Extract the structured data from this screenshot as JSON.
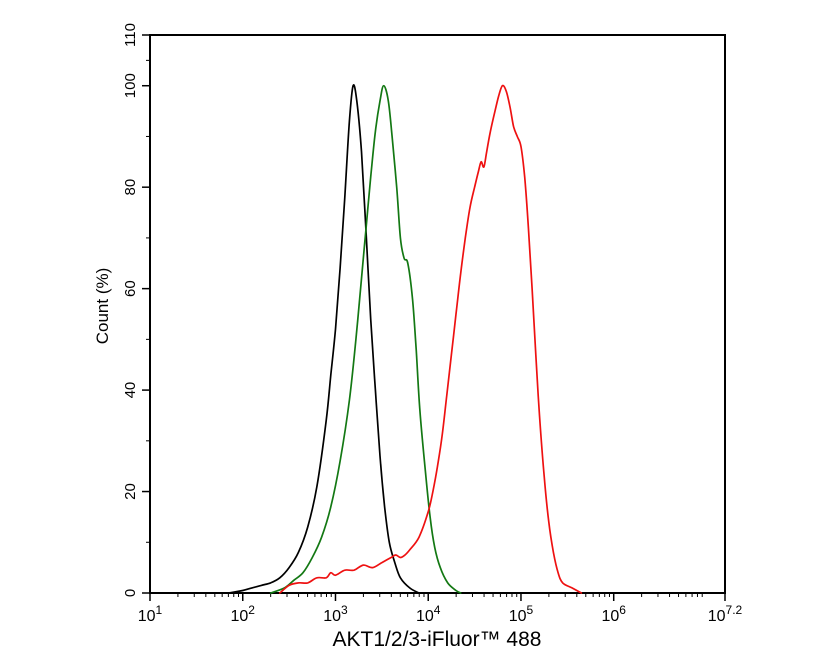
{
  "page": {
    "background": "#ffffff"
  },
  "chart_data": {
    "type": "line",
    "subtype": "flow-cytometry-histogram-overlay",
    "title": "",
    "xlabel": "AKT1/2/3-iFluor™ 488",
    "ylabel": "Count  (%)",
    "x_scale": "log10",
    "x_log_range": [
      1,
      7.2
    ],
    "x_major_tick_exponents": [
      "1",
      "2",
      "3",
      "4",
      "5",
      "6",
      "7.2"
    ],
    "x_tick_base": "10",
    "y_range": [
      0,
      110
    ],
    "y_major_ticks": [
      0,
      20,
      40,
      60,
      80,
      100,
      110
    ],
    "y_minor_ticks": [
      10,
      30,
      50,
      70,
      90,
      105
    ],
    "grid": false,
    "legend": "none",
    "frame_color": "#000000",
    "series": [
      {
        "name": "black-curve",
        "color": "#000000",
        "peak_log10_x": 3.19,
        "peak_percent": 100,
        "points": [
          [
            1.85,
            0
          ],
          [
            2.0,
            0.5
          ],
          [
            2.1,
            1
          ],
          [
            2.2,
            1.5
          ],
          [
            2.3,
            2
          ],
          [
            2.4,
            3
          ],
          [
            2.5,
            5
          ],
          [
            2.6,
            8
          ],
          [
            2.7,
            13
          ],
          [
            2.8,
            21
          ],
          [
            2.9,
            34
          ],
          [
            2.95,
            43
          ],
          [
            3.0,
            52
          ],
          [
            3.05,
            64
          ],
          [
            3.1,
            78
          ],
          [
            3.15,
            93
          ],
          [
            3.19,
            100
          ],
          [
            3.23,
            97
          ],
          [
            3.28,
            87
          ],
          [
            3.33,
            71
          ],
          [
            3.38,
            54
          ],
          [
            3.43,
            40
          ],
          [
            3.48,
            27
          ],
          [
            3.53,
            17
          ],
          [
            3.58,
            10
          ],
          [
            3.64,
            6
          ],
          [
            3.7,
            3
          ],
          [
            3.8,
            1
          ],
          [
            3.9,
            0
          ]
        ]
      },
      {
        "name": "green-curve",
        "color": "#137813",
        "peak_log10_x": 3.52,
        "peak_percent": 100,
        "points": [
          [
            2.3,
            0
          ],
          [
            2.45,
            1
          ],
          [
            2.55,
            2.5
          ],
          [
            2.65,
            4
          ],
          [
            2.75,
            7
          ],
          [
            2.85,
            11
          ],
          [
            2.95,
            17
          ],
          [
            3.05,
            26
          ],
          [
            3.15,
            38
          ],
          [
            3.22,
            50
          ],
          [
            3.28,
            62
          ],
          [
            3.33,
            72
          ],
          [
            3.38,
            82
          ],
          [
            3.43,
            91
          ],
          [
            3.48,
            97
          ],
          [
            3.52,
            100
          ],
          [
            3.57,
            97
          ],
          [
            3.61,
            90
          ],
          [
            3.66,
            80
          ],
          [
            3.7,
            70
          ],
          [
            3.74,
            66
          ],
          [
            3.78,
            65
          ],
          [
            3.83,
            58
          ],
          [
            3.87,
            48
          ],
          [
            3.91,
            36
          ],
          [
            3.97,
            24
          ],
          [
            4.02,
            15
          ],
          [
            4.07,
            9
          ],
          [
            4.13,
            5
          ],
          [
            4.21,
            2
          ],
          [
            4.3,
            0.5
          ],
          [
            4.35,
            0
          ]
        ]
      },
      {
        "name": "red-curve",
        "color": "#ee1111",
        "peak_log10_x": 4.8,
        "peak_percent": 100,
        "points": [
          [
            2.4,
            0
          ],
          [
            2.5,
            1.5
          ],
          [
            2.6,
            2
          ],
          [
            2.7,
            2
          ],
          [
            2.8,
            3
          ],
          [
            2.9,
            3
          ],
          [
            2.95,
            4
          ],
          [
            3.0,
            3.5
          ],
          [
            3.1,
            4.5
          ],
          [
            3.2,
            4.5
          ],
          [
            3.3,
            5.5
          ],
          [
            3.4,
            5
          ],
          [
            3.5,
            6
          ],
          [
            3.55,
            6.5
          ],
          [
            3.6,
            7
          ],
          [
            3.65,
            7.5
          ],
          [
            3.7,
            7
          ],
          [
            3.75,
            7.5
          ],
          [
            3.8,
            8.5
          ],
          [
            3.9,
            11
          ],
          [
            4.0,
            16
          ],
          [
            4.05,
            20
          ],
          [
            4.1,
            25
          ],
          [
            4.15,
            31
          ],
          [
            4.2,
            39
          ],
          [
            4.25,
            47
          ],
          [
            4.3,
            55
          ],
          [
            4.35,
            63
          ],
          [
            4.4,
            70
          ],
          [
            4.45,
            76
          ],
          [
            4.5,
            80
          ],
          [
            4.54,
            83
          ],
          [
            4.57,
            85
          ],
          [
            4.6,
            84
          ],
          [
            4.63,
            87
          ],
          [
            4.67,
            91
          ],
          [
            4.72,
            95
          ],
          [
            4.76,
            98
          ],
          [
            4.8,
            100
          ],
          [
            4.84,
            99
          ],
          [
            4.88,
            96
          ],
          [
            4.92,
            92
          ],
          [
            4.96,
            90
          ],
          [
            5.0,
            88
          ],
          [
            5.04,
            82
          ],
          [
            5.08,
            72
          ],
          [
            5.12,
            60
          ],
          [
            5.16,
            47
          ],
          [
            5.2,
            35
          ],
          [
            5.25,
            23
          ],
          [
            5.3,
            14
          ],
          [
            5.35,
            8
          ],
          [
            5.4,
            4
          ],
          [
            5.45,
            2
          ],
          [
            5.55,
            1
          ],
          [
            5.65,
            0
          ]
        ]
      }
    ]
  }
}
